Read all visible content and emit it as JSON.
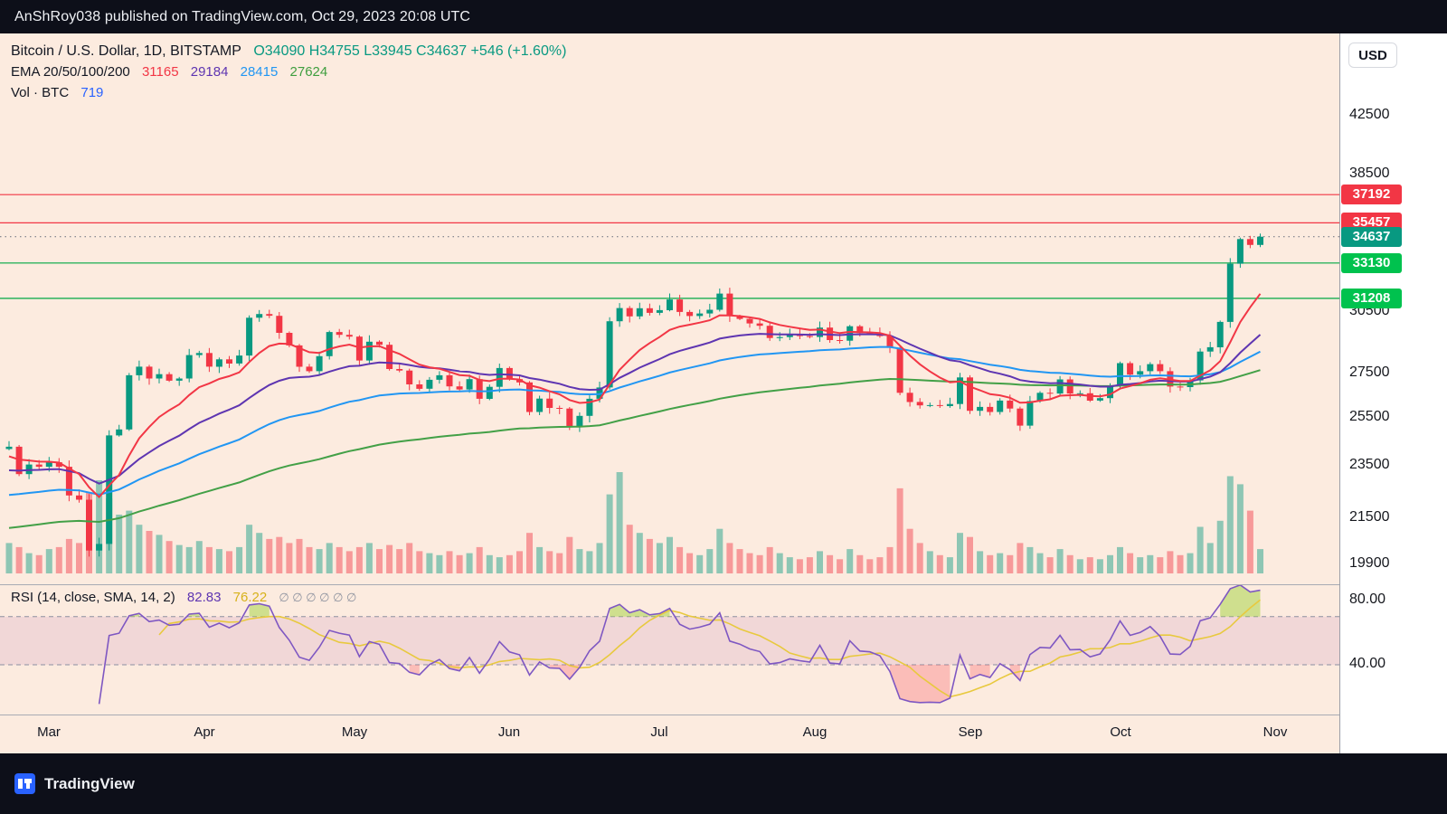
{
  "header": {
    "text": "AnShRoy038 published on TradingView.com, Oct 29, 2023 20:08 UTC"
  },
  "footer": {
    "brand": "TradingView"
  },
  "scale": {
    "currency_label": "USD"
  },
  "legend": {
    "symbol": "Bitcoin / U.S. Dollar, 1D, BITSTAMP",
    "ohlc": "O34090  H34755  L33945  C34637  +546 (+1.60%)",
    "ema_label": "EMA 20/50/100/200",
    "ema_values": [
      "31165",
      "29184",
      "28415",
      "27624"
    ],
    "vol_label": "Vol · BTC",
    "vol_value": "719",
    "rsi_label": "RSI (14, close, SMA, 14, 2)",
    "rsi_value": "82.83",
    "rsi_sma_value": "76.22",
    "rsi_nulls": "∅  ∅  ∅  ∅  ∅  ∅"
  },
  "colors": {
    "up": "#089981",
    "down": "#f23645",
    "vol_up": "rgba(8,153,129,0.45)",
    "vol_down": "rgba(242,54,69,0.45)",
    "ema20": "#f23645",
    "ema50": "#5e35b1",
    "ema100": "#2196f3",
    "ema200": "#43a047",
    "rsi_line": "#7e57c2",
    "rsi_sma": "#e8c93e",
    "rsi_band": "rgba(146,39,143,0.10)",
    "rsi_over": "rgba(170,213,74,0.55)",
    "rsi_under": "rgba(247,82,95,0.30)",
    "chart_bg": "#fcebdf",
    "panel_bg": "#ffffff",
    "bar_bg": "#0d0f19"
  },
  "chart_data": {
    "type": "candlestick",
    "title": "Bitcoin / U.S. Dollar, 1D, BITSTAMP",
    "symbol": "BTCUSD",
    "interval": "1D",
    "exchange": "BITSTAMP",
    "scale_type": "log",
    "last_bar": {
      "open": 34090,
      "high": 34755,
      "low": 33945,
      "close": 34637,
      "change": "+546 (+1.60%)"
    },
    "indicators": {
      "ema_periods_days": [
        20,
        50,
        100,
        200
      ],
      "ema_latest": [
        31165,
        29184,
        28415,
        27624
      ],
      "volume_latest_btc": 719
    },
    "sample_days": 2,
    "closes": [
      24280,
      23180,
      23560,
      23470,
      23650,
      23470,
      22360,
      22200,
      20370,
      20600,
      24750,
      25000,
      27400,
      27800,
      27250,
      27450,
      27150,
      27250,
      28350,
      28450,
      27800,
      28150,
      27950,
      28330,
      30200,
      30390,
      30300,
      29440,
      28820,
      27800,
      27590,
      28300,
      29480,
      29340,
      29250,
      28090,
      29000,
      28850,
      27690,
      27620,
      26980,
      26780,
      27190,
      27400,
      26890,
      26750,
      27220,
      26330,
      26870,
      27740,
      27220,
      27070,
      25750,
      26340,
      25930,
      25900,
      25130,
      25580,
      26330,
      26840,
      30020,
      30700,
      30270,
      30690,
      30450,
      30590,
      31150,
      30500,
      30290,
      30420,
      30610,
      31460,
      30290,
      30140,
      29910,
      29790,
      29180,
      29230,
      29350,
      29280,
      29230,
      29700,
      29080,
      29050,
      29770,
      29430,
      29400,
      29280,
      28700,
      26600,
      26190,
      26040,
      26050,
      26010,
      26100,
      27300,
      25800,
      25970,
      25750,
      26250,
      25900,
      25160,
      26230,
      26600,
      26570,
      27210,
      26570,
      26580,
      26250,
      26360,
      26910,
      27970,
      27430,
      27590,
      27920,
      27590,
      26880,
      26860,
      27160,
      28520,
      28730,
      29990,
      33090,
      34500,
      34160,
      34637
    ],
    "volumes_rel": [
      30,
      26,
      20,
      18,
      24,
      26,
      34,
      30,
      80,
      92,
      74,
      58,
      62,
      48,
      42,
      38,
      32,
      28,
      26,
      32,
      26,
      24,
      22,
      26,
      48,
      40,
      34,
      36,
      30,
      34,
      26,
      24,
      30,
      26,
      22,
      26,
      30,
      24,
      28,
      24,
      30,
      22,
      20,
      18,
      22,
      18,
      20,
      26,
      18,
      16,
      18,
      22,
      40,
      26,
      22,
      20,
      36,
      24,
      22,
      30,
      78,
      100,
      48,
      40,
      34,
      30,
      36,
      26,
      20,
      18,
      24,
      44,
      30,
      24,
      20,
      18,
      26,
      20,
      16,
      14,
      16,
      22,
      18,
      14,
      24,
      18,
      14,
      16,
      26,
      84,
      44,
      30,
      22,
      18,
      16,
      40,
      36,
      22,
      18,
      20,
      18,
      30,
      26,
      20,
      16,
      24,
      18,
      14,
      16,
      14,
      18,
      26,
      20,
      16,
      18,
      16,
      22,
      18,
      20,
      46,
      30,
      52,
      96,
      88,
      62,
      24
    ],
    "levels": [
      {
        "price": 37192,
        "style": "solid",
        "color": "#f23645",
        "badge": "#f23645"
      },
      {
        "price": 35457,
        "style": "solid",
        "color": "#f23645",
        "badge": "#f23645"
      },
      {
        "price": 34637,
        "style": "dotted",
        "color": "#787b86",
        "badge": "#089981",
        "is_last_price": true
      },
      {
        "price": 33130,
        "style": "solid",
        "color": "#00a843",
        "badge": "#00c24e"
      },
      {
        "price": 31208,
        "style": "solid",
        "color": "#00a843",
        "badge": "#00c24e"
      }
    ],
    "price_ticks": [
      42500,
      38500,
      30500,
      27500,
      25500,
      23500,
      21500,
      19900
    ],
    "months": [
      {
        "label": "Mar",
        "day": 8
      },
      {
        "label": "Apr",
        "day": 39
      },
      {
        "label": "May",
        "day": 69
      },
      {
        "label": "Jun",
        "day": 100
      },
      {
        "label": "Jul",
        "day": 130
      },
      {
        "label": "Aug",
        "day": 161
      },
      {
        "label": "Sep",
        "day": 192
      },
      {
        "label": "Oct",
        "day": 222
      },
      {
        "label": "Nov",
        "day": 253
      }
    ],
    "rsi": {
      "value": 82.83,
      "sma": 76.22,
      "upper_band": 70,
      "lower_band": 40,
      "ticks": [
        80,
        40
      ]
    }
  }
}
